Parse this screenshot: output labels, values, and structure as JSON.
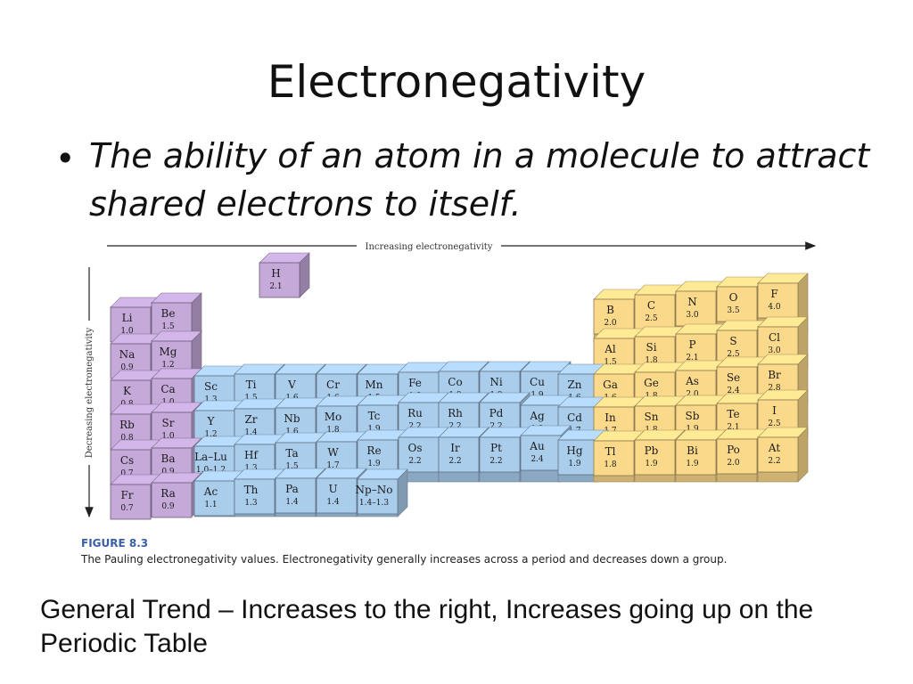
{
  "slide": {
    "title": "Electronegativity",
    "bullet": "•",
    "definition": "The ability of an atom in a molecule to attract shared electrons to itself.",
    "figure_label": "FIGURE 8.3",
    "figure_caption": "The Pauling electronegativity values. Electronegativity generally increases across a period and decreases down a group.",
    "trend": "General Trend – Increases to the right, Increases going up on the Periodic Table"
  },
  "axes": {
    "horizontal_label": "Increasing electronegativity",
    "vertical_label": "Decreasing electronegativity"
  },
  "colors": {
    "s_block": "#c4a9d9",
    "d_block": "#aacdec",
    "p_block": "#fbd98a",
    "caption_accent": "#3a5fa8"
  },
  "elements": [
    {
      "symbol": "H",
      "value": "2.1",
      "group": 1,
      "period": 1,
      "block": "s"
    },
    {
      "symbol": "Li",
      "value": "1.0",
      "group": 1,
      "period": 2,
      "block": "s"
    },
    {
      "symbol": "Be",
      "value": "1.5",
      "group": 2,
      "period": 2,
      "block": "s"
    },
    {
      "symbol": "B",
      "value": "2.0",
      "group": 13,
      "period": 2,
      "block": "p"
    },
    {
      "symbol": "C",
      "value": "2.5",
      "group": 14,
      "period": 2,
      "block": "p"
    },
    {
      "symbol": "N",
      "value": "3.0",
      "group": 15,
      "period": 2,
      "block": "p"
    },
    {
      "symbol": "O",
      "value": "3.5",
      "group": 16,
      "period": 2,
      "block": "p"
    },
    {
      "symbol": "F",
      "value": "4.0",
      "group": 17,
      "period": 2,
      "block": "p"
    },
    {
      "symbol": "Na",
      "value": "0.9",
      "group": 1,
      "period": 3,
      "block": "s"
    },
    {
      "symbol": "Mg",
      "value": "1.2",
      "group": 2,
      "period": 3,
      "block": "s"
    },
    {
      "symbol": "Al",
      "value": "1.5",
      "group": 13,
      "period": 3,
      "block": "p"
    },
    {
      "symbol": "Si",
      "value": "1.8",
      "group": 14,
      "period": 3,
      "block": "p"
    },
    {
      "symbol": "P",
      "value": "2.1",
      "group": 15,
      "period": 3,
      "block": "p"
    },
    {
      "symbol": "S",
      "value": "2.5",
      "group": 16,
      "period": 3,
      "block": "p"
    },
    {
      "symbol": "Cl",
      "value": "3.0",
      "group": 17,
      "period": 3,
      "block": "p"
    },
    {
      "symbol": "K",
      "value": "0.8",
      "group": 1,
      "period": 4,
      "block": "s"
    },
    {
      "symbol": "Ca",
      "value": "1.0",
      "group": 2,
      "period": 4,
      "block": "s"
    },
    {
      "symbol": "Sc",
      "value": "1.3",
      "group": 3,
      "period": 4,
      "block": "d"
    },
    {
      "symbol": "Ti",
      "value": "1.5",
      "group": 4,
      "period": 4,
      "block": "d"
    },
    {
      "symbol": "V",
      "value": "1.6",
      "group": 5,
      "period": 4,
      "block": "d"
    },
    {
      "symbol": "Cr",
      "value": "1.6",
      "group": 6,
      "period": 4,
      "block": "d"
    },
    {
      "symbol": "Mn",
      "value": "1.5",
      "group": 7,
      "period": 4,
      "block": "d"
    },
    {
      "symbol": "Fe",
      "value": "1.8",
      "group": 8,
      "period": 4,
      "block": "d"
    },
    {
      "symbol": "Co",
      "value": "1.9",
      "group": 9,
      "period": 4,
      "block": "d"
    },
    {
      "symbol": "Ni",
      "value": "1.9",
      "group": 10,
      "period": 4,
      "block": "d"
    },
    {
      "symbol": "Cu",
      "value": "1.9",
      "group": 11,
      "period": 4,
      "block": "d"
    },
    {
      "symbol": "Zn",
      "value": "1.6",
      "group": 12,
      "period": 4,
      "block": "d"
    },
    {
      "symbol": "Ga",
      "value": "1.6",
      "group": 13,
      "period": 4,
      "block": "p"
    },
    {
      "symbol": "Ge",
      "value": "1.8",
      "group": 14,
      "period": 4,
      "block": "p"
    },
    {
      "symbol": "As",
      "value": "2.0",
      "group": 15,
      "period": 4,
      "block": "p"
    },
    {
      "symbol": "Se",
      "value": "2.4",
      "group": 16,
      "period": 4,
      "block": "p"
    },
    {
      "symbol": "Br",
      "value": "2.8",
      "group": 17,
      "period": 4,
      "block": "p"
    },
    {
      "symbol": "Rb",
      "value": "0.8",
      "group": 1,
      "period": 5,
      "block": "s"
    },
    {
      "symbol": "Sr",
      "value": "1.0",
      "group": 2,
      "period": 5,
      "block": "s"
    },
    {
      "symbol": "Y",
      "value": "1.2",
      "group": 3,
      "period": 5,
      "block": "d"
    },
    {
      "symbol": "Zr",
      "value": "1.4",
      "group": 4,
      "period": 5,
      "block": "d"
    },
    {
      "symbol": "Nb",
      "value": "1.6",
      "group": 5,
      "period": 5,
      "block": "d"
    },
    {
      "symbol": "Mo",
      "value": "1.8",
      "group": 6,
      "period": 5,
      "block": "d"
    },
    {
      "symbol": "Tc",
      "value": "1.9",
      "group": 7,
      "period": 5,
      "block": "d"
    },
    {
      "symbol": "Ru",
      "value": "2.2",
      "group": 8,
      "period": 5,
      "block": "d"
    },
    {
      "symbol": "Rh",
      "value": "2.2",
      "group": 9,
      "period": 5,
      "block": "d"
    },
    {
      "symbol": "Pd",
      "value": "2.2",
      "group": 10,
      "period": 5,
      "block": "d"
    },
    {
      "symbol": "Ag",
      "value": "1.9",
      "group": 11,
      "period": 5,
      "block": "d"
    },
    {
      "symbol": "Cd",
      "value": "1.7",
      "group": 12,
      "period": 5,
      "block": "d"
    },
    {
      "symbol": "In",
      "value": "1.7",
      "group": 13,
      "period": 5,
      "block": "p"
    },
    {
      "symbol": "Sn",
      "value": "1.8",
      "group": 14,
      "period": 5,
      "block": "p"
    },
    {
      "symbol": "Sb",
      "value": "1.9",
      "group": 15,
      "period": 5,
      "block": "p"
    },
    {
      "symbol": "Te",
      "value": "2.1",
      "group": 16,
      "period": 5,
      "block": "p"
    },
    {
      "symbol": "I",
      "value": "2.5",
      "group": 17,
      "period": 5,
      "block": "p"
    },
    {
      "symbol": "Cs",
      "value": "0.7",
      "group": 1,
      "period": 6,
      "block": "s"
    },
    {
      "symbol": "Ba",
      "value": "0.9",
      "group": 2,
      "period": 6,
      "block": "s"
    },
    {
      "symbol": "La–Lu",
      "value": "1.0–1.2",
      "group": 3,
      "period": 6,
      "block": "d"
    },
    {
      "symbol": "Hf",
      "value": "1.3",
      "group": 4,
      "period": 6,
      "block": "d"
    },
    {
      "symbol": "Ta",
      "value": "1.5",
      "group": 5,
      "period": 6,
      "block": "d"
    },
    {
      "symbol": "W",
      "value": "1.7",
      "group": 6,
      "period": 6,
      "block": "d"
    },
    {
      "symbol": "Re",
      "value": "1.9",
      "group": 7,
      "period": 6,
      "block": "d"
    },
    {
      "symbol": "Os",
      "value": "2.2",
      "group": 8,
      "period": 6,
      "block": "d"
    },
    {
      "symbol": "Ir",
      "value": "2.2",
      "group": 9,
      "period": 6,
      "block": "d"
    },
    {
      "symbol": "Pt",
      "value": "2.2",
      "group": 10,
      "period": 6,
      "block": "d"
    },
    {
      "symbol": "Au",
      "value": "2.4",
      "group": 11,
      "period": 6,
      "block": "d"
    },
    {
      "symbol": "Hg",
      "value": "1.9",
      "group": 12,
      "period": 6,
      "block": "d"
    },
    {
      "symbol": "Tl",
      "value": "1.8",
      "group": 13,
      "period": 6,
      "block": "p"
    },
    {
      "symbol": "Pb",
      "value": "1.9",
      "group": 14,
      "period": 6,
      "block": "p"
    },
    {
      "symbol": "Bi",
      "value": "1.9",
      "group": 15,
      "period": 6,
      "block": "p"
    },
    {
      "symbol": "Po",
      "value": "2.0",
      "group": 16,
      "period": 6,
      "block": "p"
    },
    {
      "symbol": "At",
      "value": "2.2",
      "group": 17,
      "period": 6,
      "block": "p"
    },
    {
      "symbol": "Fr",
      "value": "0.7",
      "group": 1,
      "period": 7,
      "block": "s"
    },
    {
      "symbol": "Ra",
      "value": "0.9",
      "group": 2,
      "period": 7,
      "block": "s"
    },
    {
      "symbol": "Ac",
      "value": "1.1",
      "group": 3,
      "period": 7,
      "block": "d"
    },
    {
      "symbol": "Th",
      "value": "1.3",
      "group": 4,
      "period": 7,
      "block": "d"
    },
    {
      "symbol": "Pa",
      "value": "1.4",
      "group": 5,
      "period": 7,
      "block": "d"
    },
    {
      "symbol": "U",
      "value": "1.4",
      "group": 6,
      "period": 7,
      "block": "d"
    },
    {
      "symbol": "Np–No",
      "value": "1.4–1.3",
      "group": 7,
      "period": 7,
      "block": "d"
    }
  ]
}
